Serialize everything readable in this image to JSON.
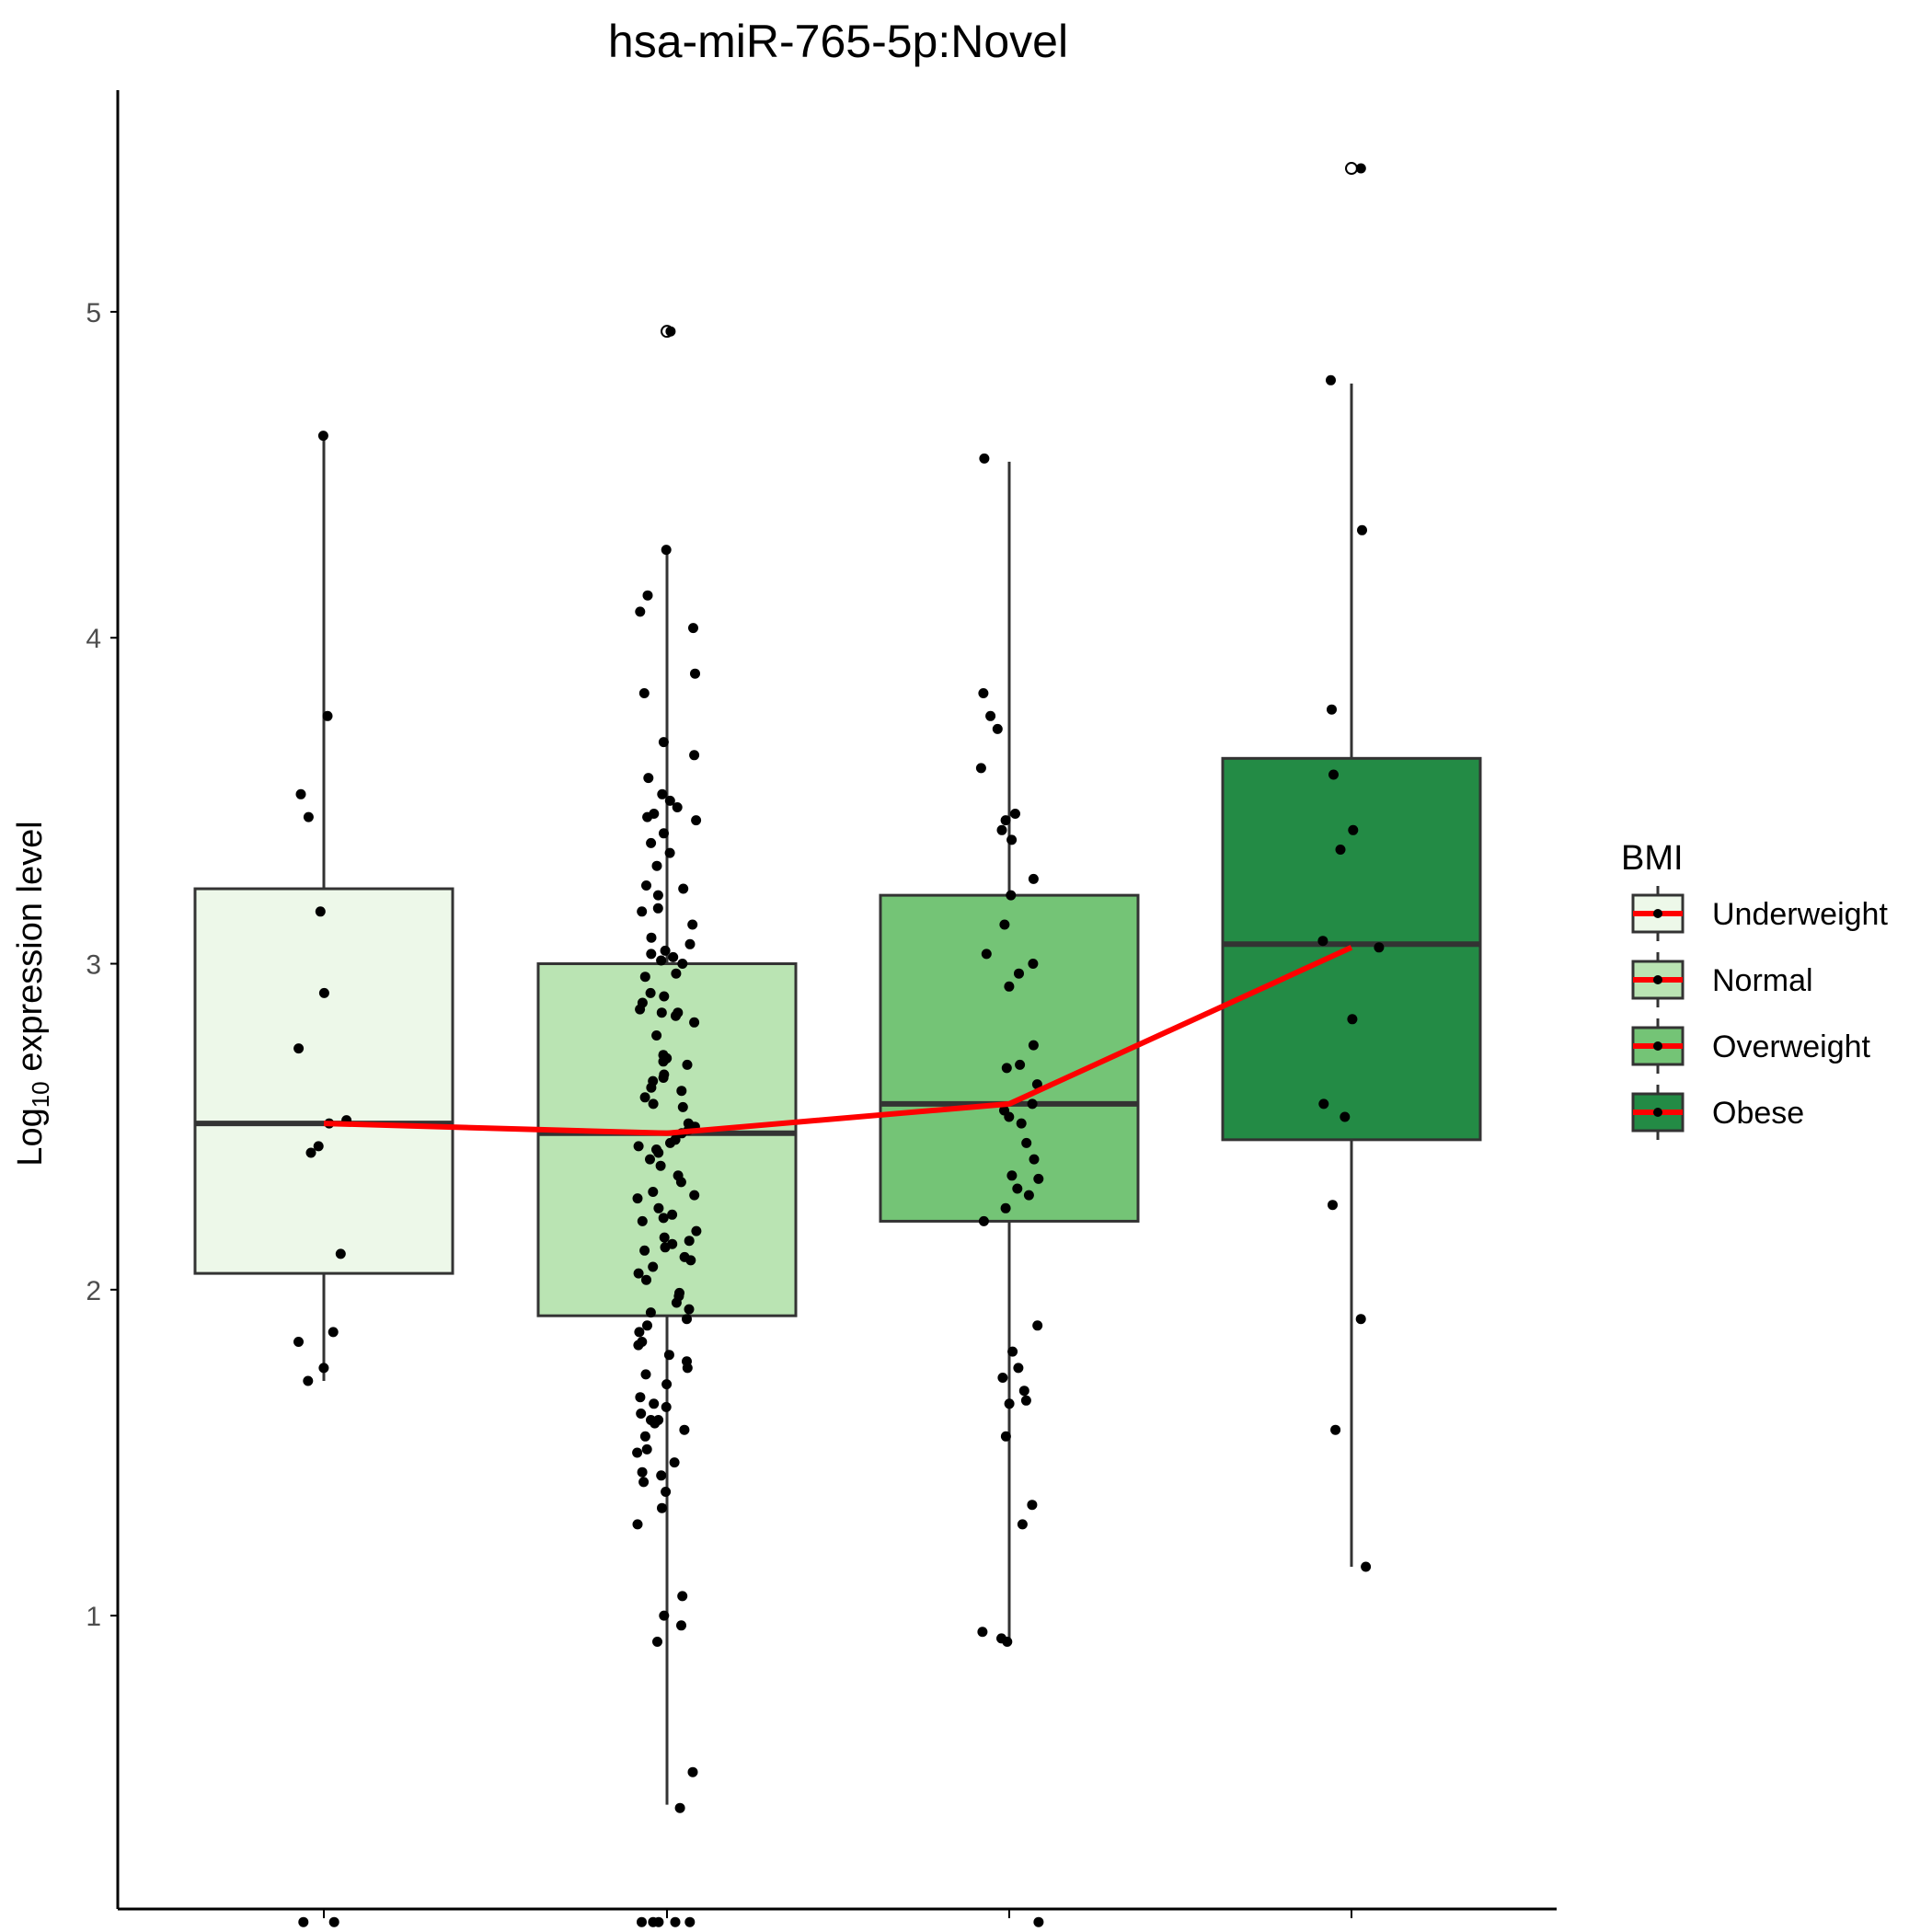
{
  "chart_data": {
    "type": "box",
    "title": "hsa-miR-765-5p:Novel",
    "xlabel": "",
    "ylabel_main": "Log",
    "ylabel_sub": "10",
    "ylabel_rest": " expression level",
    "ylim": [
      0.1,
      5.68
    ],
    "yticks": [
      1,
      2,
      3,
      4,
      5
    ],
    "legend_title": "BMI",
    "legend_placement": "right",
    "mean_line_color": "#ff0000",
    "groups": [
      {
        "name": "Underweight",
        "color": "#edf8e9",
        "whisker_low": 1.72,
        "q1": 2.05,
        "median": 2.51,
        "q3": 3.23,
        "whisker_high": 4.61,
        "mean": 2.51,
        "outliers": [],
        "points": [
          4.62,
          3.76,
          3.52,
          3.45,
          3.16,
          2.91,
          2.74,
          2.52,
          2.51,
          2.44,
          2.42,
          2.11,
          1.87,
          1.84,
          1.76,
          1.72,
          0.06,
          0.06
        ]
      },
      {
        "name": "Normal",
        "color": "#bae4b3",
        "whisker_low": 0.42,
        "q1": 1.92,
        "median": 2.48,
        "q3": 3.0,
        "whisker_high": 4.27,
        "mean": 2.48,
        "outliers": [
          4.94
        ],
        "points": [
          4.94,
          4.27,
          4.13,
          4.08,
          4.03,
          3.89,
          3.83,
          3.68,
          3.64,
          3.57,
          3.52,
          3.5,
          3.48,
          3.46,
          3.45,
          3.44,
          3.4,
          3.37,
          3.34,
          3.3,
          3.24,
          3.23,
          3.21,
          3.17,
          3.16,
          3.12,
          3.08,
          3.06,
          3.04,
          3.03,
          3.02,
          3.01,
          3.0,
          2.97,
          2.96,
          2.91,
          2.9,
          2.88,
          2.86,
          2.85,
          2.85,
          2.84,
          2.82,
          2.78,
          2.72,
          2.71,
          2.7,
          2.69,
          2.66,
          2.65,
          2.64,
          2.62,
          2.61,
          2.59,
          2.57,
          2.56,
          2.51,
          2.5,
          2.5,
          2.49,
          2.48,
          2.46,
          2.45,
          2.44,
          2.43,
          2.42,
          2.4,
          2.38,
          2.35,
          2.33,
          2.3,
          2.29,
          2.28,
          2.25,
          2.23,
          2.22,
          2.21,
          2.18,
          2.16,
          2.15,
          2.14,
          2.13,
          2.12,
          2.1,
          2.09,
          2.07,
          2.05,
          2.03,
          1.99,
          1.98,
          1.96,
          1.94,
          1.93,
          1.91,
          1.89,
          1.87,
          1.84,
          1.83,
          1.8,
          1.78,
          1.76,
          1.74,
          1.71,
          1.67,
          1.65,
          1.64,
          1.62,
          1.6,
          1.6,
          1.59,
          1.57,
          1.55,
          1.51,
          1.5,
          1.47,
          1.44,
          1.43,
          1.41,
          1.38,
          1.33,
          1.28,
          1.06,
          1.0,
          0.97,
          0.92,
          0.52,
          0.41,
          0.06,
          0.06,
          0.06,
          0.06,
          0.06
        ]
      },
      {
        "name": "Overweight",
        "color": "#74c476",
        "whisker_low": 0.93,
        "q1": 2.21,
        "median": 2.57,
        "q3": 3.21,
        "whisker_high": 4.54,
        "mean": 2.57,
        "outliers": [],
        "points": [
          4.55,
          3.83,
          3.76,
          3.72,
          3.6,
          3.46,
          3.44,
          3.41,
          3.38,
          3.26,
          3.21,
          3.12,
          3.03,
          3.0,
          2.97,
          2.93,
          2.75,
          2.69,
          2.68,
          2.63,
          2.57,
          2.55,
          2.53,
          2.51,
          2.45,
          2.4,
          2.35,
          2.34,
          2.31,
          2.29,
          2.25,
          2.21,
          1.89,
          1.81,
          1.76,
          1.73,
          1.69,
          1.66,
          1.65,
          1.55,
          1.34,
          1.28,
          0.95,
          0.93,
          0.92,
          0.06
        ]
      },
      {
        "name": "Obese",
        "color": "#238b45",
        "whisker_low": 1.15,
        "q1": 2.46,
        "median": 3.06,
        "q3": 3.63,
        "whisker_high": 4.78,
        "mean": 3.05,
        "outliers": [
          5.44
        ],
        "points": [
          5.44,
          4.79,
          4.33,
          3.78,
          3.58,
          3.41,
          3.35,
          3.07,
          3.05,
          2.83,
          2.57,
          2.53,
          2.26,
          1.91,
          1.57,
          1.15
        ]
      }
    ]
  }
}
